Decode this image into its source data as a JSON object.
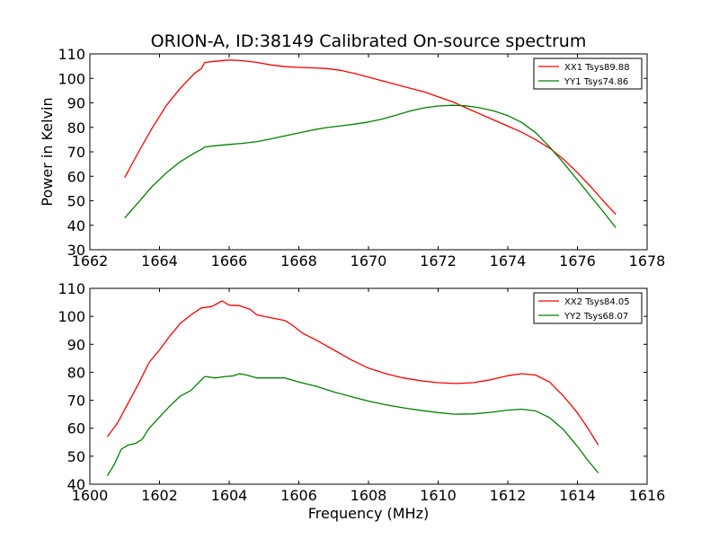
{
  "chart_data": [
    {
      "type": "line",
      "title": "ORION-A, ID:38149 Calibrated On-source spectrum",
      "xlabel": "",
      "ylabel": "Power in Kelvin",
      "xlim": [
        1662,
        1678
      ],
      "ylim": [
        30,
        110
      ],
      "xticks": [
        "1662",
        "1664",
        "1666",
        "1668",
        "1670",
        "1672",
        "1674",
        "1676",
        "1678"
      ],
      "yticks": [
        "30",
        "40",
        "50",
        "60",
        "70",
        "80",
        "90",
        "100",
        "110"
      ],
      "legend_position": "top-right",
      "series": [
        {
          "name": "XX1 Tsys89.88",
          "color": "#ff0000",
          "points": [
            [
              1663.0,
              59.5
            ],
            [
              1663.4,
              70
            ],
            [
              1663.8,
              80
            ],
            [
              1664.2,
              89
            ],
            [
              1664.6,
              96
            ],
            [
              1665.0,
              102
            ],
            [
              1665.2,
              104
            ],
            [
              1665.3,
              106.5
            ],
            [
              1665.6,
              107
            ],
            [
              1666.0,
              107.5
            ],
            [
              1666.4,
              107.2
            ],
            [
              1666.8,
              106.5
            ],
            [
              1667.2,
              105.5
            ],
            [
              1667.6,
              104.8
            ],
            [
              1668.0,
              104.5
            ],
            [
              1668.4,
              104.3
            ],
            [
              1668.8,
              104
            ],
            [
              1669.2,
              103.3
            ],
            [
              1669.6,
              102
            ],
            [
              1670.0,
              100.5
            ],
            [
              1670.4,
              99
            ],
            [
              1670.8,
              97.5
            ],
            [
              1671.2,
              96
            ],
            [
              1671.6,
              94.5
            ],
            [
              1672.0,
              92.5
            ],
            [
              1672.4,
              90.5
            ],
            [
              1672.8,
              88
            ],
            [
              1673.2,
              85.5
            ],
            [
              1673.6,
              83
            ],
            [
              1674.0,
              80.5
            ],
            [
              1674.4,
              78
            ],
            [
              1674.8,
              75
            ],
            [
              1675.2,
              71.5
            ],
            [
              1675.6,
              67
            ],
            [
              1676.0,
              61.5
            ],
            [
              1676.4,
              55.5
            ],
            [
              1676.8,
              49
            ],
            [
              1677.1,
              44.5
            ]
          ]
        },
        {
          "name": "YY1 Tsys74.86",
          "color": "#008000",
          "points": [
            [
              1663.0,
              43
            ],
            [
              1663.4,
              49.5
            ],
            [
              1663.8,
              56
            ],
            [
              1664.2,
              61.5
            ],
            [
              1664.6,
              66
            ],
            [
              1665.0,
              69.5
            ],
            [
              1665.2,
              71
            ],
            [
              1665.3,
              72
            ],
            [
              1665.6,
              72.5
            ],
            [
              1666.0,
              73
            ],
            [
              1666.4,
              73.5
            ],
            [
              1666.8,
              74.2
            ],
            [
              1667.2,
              75.3
            ],
            [
              1667.6,
              76.5
            ],
            [
              1668.0,
              77.7
            ],
            [
              1668.4,
              78.9
            ],
            [
              1668.8,
              79.9
            ],
            [
              1669.2,
              80.6
            ],
            [
              1669.6,
              81.3
            ],
            [
              1670.0,
              82.2
            ],
            [
              1670.4,
              83.4
            ],
            [
              1670.8,
              85
            ],
            [
              1671.2,
              86.7
            ],
            [
              1671.6,
              88
            ],
            [
              1672.0,
              88.7
            ],
            [
              1672.4,
              89
            ],
            [
              1672.8,
              88.8
            ],
            [
              1673.2,
              88
            ],
            [
              1673.6,
              86.7
            ],
            [
              1674.0,
              84.8
            ],
            [
              1674.4,
              82
            ],
            [
              1674.8,
              77.8
            ],
            [
              1675.2,
              72
            ],
            [
              1675.6,
              65.5
            ],
            [
              1676.0,
              58.5
            ],
            [
              1676.4,
              51.5
            ],
            [
              1676.8,
              44.5
            ],
            [
              1677.1,
              39
            ]
          ]
        }
      ]
    },
    {
      "type": "line",
      "title": "",
      "xlabel": "Frequency (MHz)",
      "ylabel": "",
      "xlim": [
        1600,
        1616
      ],
      "ylim": [
        40,
        110
      ],
      "xticks": [
        "1600",
        "1602",
        "1604",
        "1606",
        "1608",
        "1610",
        "1612",
        "1614",
        "1616"
      ],
      "yticks": [
        "40",
        "50",
        "60",
        "70",
        "80",
        "90",
        "100",
        "110"
      ],
      "legend_position": "top-right",
      "series": [
        {
          "name": "XX2 Tsys84.05",
          "color": "#ff0000",
          "points": [
            [
              1600.5,
              57
            ],
            [
              1600.8,
              62
            ],
            [
              1601.1,
              69
            ],
            [
              1601.4,
              76
            ],
            [
              1601.7,
              83.5
            ],
            [
              1602.0,
              88
            ],
            [
              1602.3,
              93
            ],
            [
              1602.6,
              97.5
            ],
            [
              1602.9,
              100.5
            ],
            [
              1603.2,
              103
            ],
            [
              1603.5,
              103.5
            ],
            [
              1603.8,
              105.5
            ],
            [
              1604.0,
              104
            ],
            [
              1604.3,
              103.8
            ],
            [
              1604.6,
              102.5
            ],
            [
              1604.8,
              100.5
            ],
            [
              1605.2,
              99.5
            ],
            [
              1605.6,
              98.5
            ],
            [
              1605.8,
              97
            ],
            [
              1606.1,
              94
            ],
            [
              1606.5,
              91.5
            ],
            [
              1607.0,
              88
            ],
            [
              1607.5,
              84.5
            ],
            [
              1608.0,
              81.5
            ],
            [
              1608.5,
              79.5
            ],
            [
              1609.0,
              78
            ],
            [
              1609.5,
              77
            ],
            [
              1610.0,
              76.3
            ],
            [
              1610.5,
              76
            ],
            [
              1611.0,
              76.3
            ],
            [
              1611.5,
              77.3
            ],
            [
              1612.0,
              78.8
            ],
            [
              1612.4,
              79.5
            ],
            [
              1612.8,
              79
            ],
            [
              1613.2,
              76.5
            ],
            [
              1613.6,
              71.5
            ],
            [
              1614.0,
              65.5
            ],
            [
              1614.3,
              60
            ],
            [
              1614.6,
              54
            ]
          ]
        },
        {
          "name": "YY2 Tsys68.07",
          "color": "#008000",
          "points": [
            [
              1600.5,
              43
            ],
            [
              1600.7,
              47
            ],
            [
              1600.9,
              52.5
            ],
            [
              1601.1,
              54
            ],
            [
              1601.3,
              54.5
            ],
            [
              1601.5,
              56
            ],
            [
              1601.7,
              60
            ],
            [
              1602.0,
              64
            ],
            [
              1602.3,
              68
            ],
            [
              1602.6,
              71.5
            ],
            [
              1602.9,
              73.5
            ],
            [
              1603.1,
              76
            ],
            [
              1603.3,
              78.5
            ],
            [
              1603.6,
              78
            ],
            [
              1603.9,
              78.5
            ],
            [
              1604.1,
              78.7
            ],
            [
              1604.3,
              79.5
            ],
            [
              1604.5,
              79
            ],
            [
              1604.8,
              78
            ],
            [
              1605.2,
              78
            ],
            [
              1605.6,
              78
            ],
            [
              1606.0,
              76.5
            ],
            [
              1606.5,
              75
            ],
            [
              1607.0,
              73
            ],
            [
              1607.5,
              71.3
            ],
            [
              1608.0,
              69.7
            ],
            [
              1608.5,
              68.4
            ],
            [
              1609.0,
              67.3
            ],
            [
              1609.5,
              66.4
            ],
            [
              1610.0,
              65.6
            ],
            [
              1610.5,
              65
            ],
            [
              1611.0,
              65.1
            ],
            [
              1611.5,
              65.7
            ],
            [
              1612.0,
              66.5
            ],
            [
              1612.4,
              66.8
            ],
            [
              1612.8,
              66.2
            ],
            [
              1613.2,
              63.8
            ],
            [
              1613.6,
              59.5
            ],
            [
              1614.0,
              53.5
            ],
            [
              1614.3,
              48.5
            ],
            [
              1614.6,
              44
            ]
          ]
        }
      ]
    }
  ]
}
